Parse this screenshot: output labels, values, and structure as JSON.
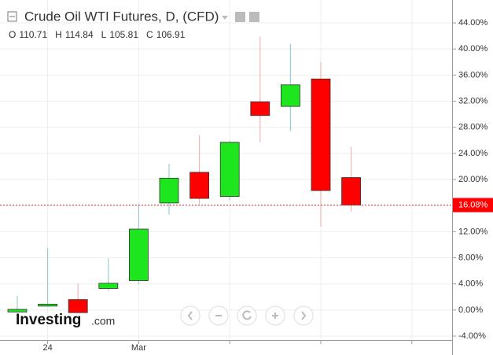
{
  "chart_data": {
    "type": "candlestick",
    "title": "Crude Oil WTI Futures, D, (CFD)",
    "ohlc": [
      {
        "key": "O",
        "value": "110.71"
      },
      {
        "key": "H",
        "value": "114.84"
      },
      {
        "key": "L",
        "value": "105.81"
      },
      {
        "key": "C",
        "value": "106.91"
      }
    ],
    "categories": [
      null,
      "24",
      null,
      null,
      "Mar",
      null,
      null,
      null,
      null,
      null,
      null,
      null
    ],
    "open": [
      -0.3,
      0.6,
      1.6,
      3.3,
      4.5,
      16.4,
      21.1,
      17.4,
      31.9,
      31.2,
      35.4,
      20.3
    ],
    "high": [
      2.2,
      9.5,
      4.1,
      7.9,
      16.2,
      22.4,
      26.8,
      25.9,
      41.9,
      40.8,
      38.0,
      25.0
    ],
    "low": [
      -0.4,
      0.5,
      -0.4,
      2.9,
      4.0,
      14.6,
      16.2,
      16.8,
      25.7,
      27.4,
      12.8,
      15.1
    ],
    "close": [
      0.1,
      0.9,
      -0.4,
      4.1,
      12.4,
      20.2,
      17.1,
      25.7,
      29.8,
      34.5,
      18.3,
      16.08
    ],
    "up_color": "#1ee61e",
    "down_color": "#ff0000",
    "last_price": {
      "value": 16.08,
      "label": "16.08%"
    },
    "ylim": [
      -4.6,
      47.5
    ],
    "yticks": [
      {
        "value": 44,
        "label": "44.00%"
      },
      {
        "value": 40,
        "label": "40.00%"
      },
      {
        "value": 36,
        "label": "36.00%"
      },
      {
        "value": 32,
        "label": "32.00%"
      },
      {
        "value": 28,
        "label": "28.00%"
      },
      {
        "value": 24,
        "label": "24.00%"
      },
      {
        "value": 20,
        "label": "20.00%"
      },
      {
        "value": 16,
        "label": "16.00%"
      },
      {
        "value": 12,
        "label": "12.00%"
      },
      {
        "value": 8,
        "label": "8.00%"
      },
      {
        "value": 4,
        "label": "4.00%"
      },
      {
        "value": 0,
        "label": "0.00%"
      },
      {
        "value": -4,
        "label": "-4.00%"
      }
    ],
    "grid": true,
    "logo": "Investing",
    "logo_suffix": ".com"
  }
}
